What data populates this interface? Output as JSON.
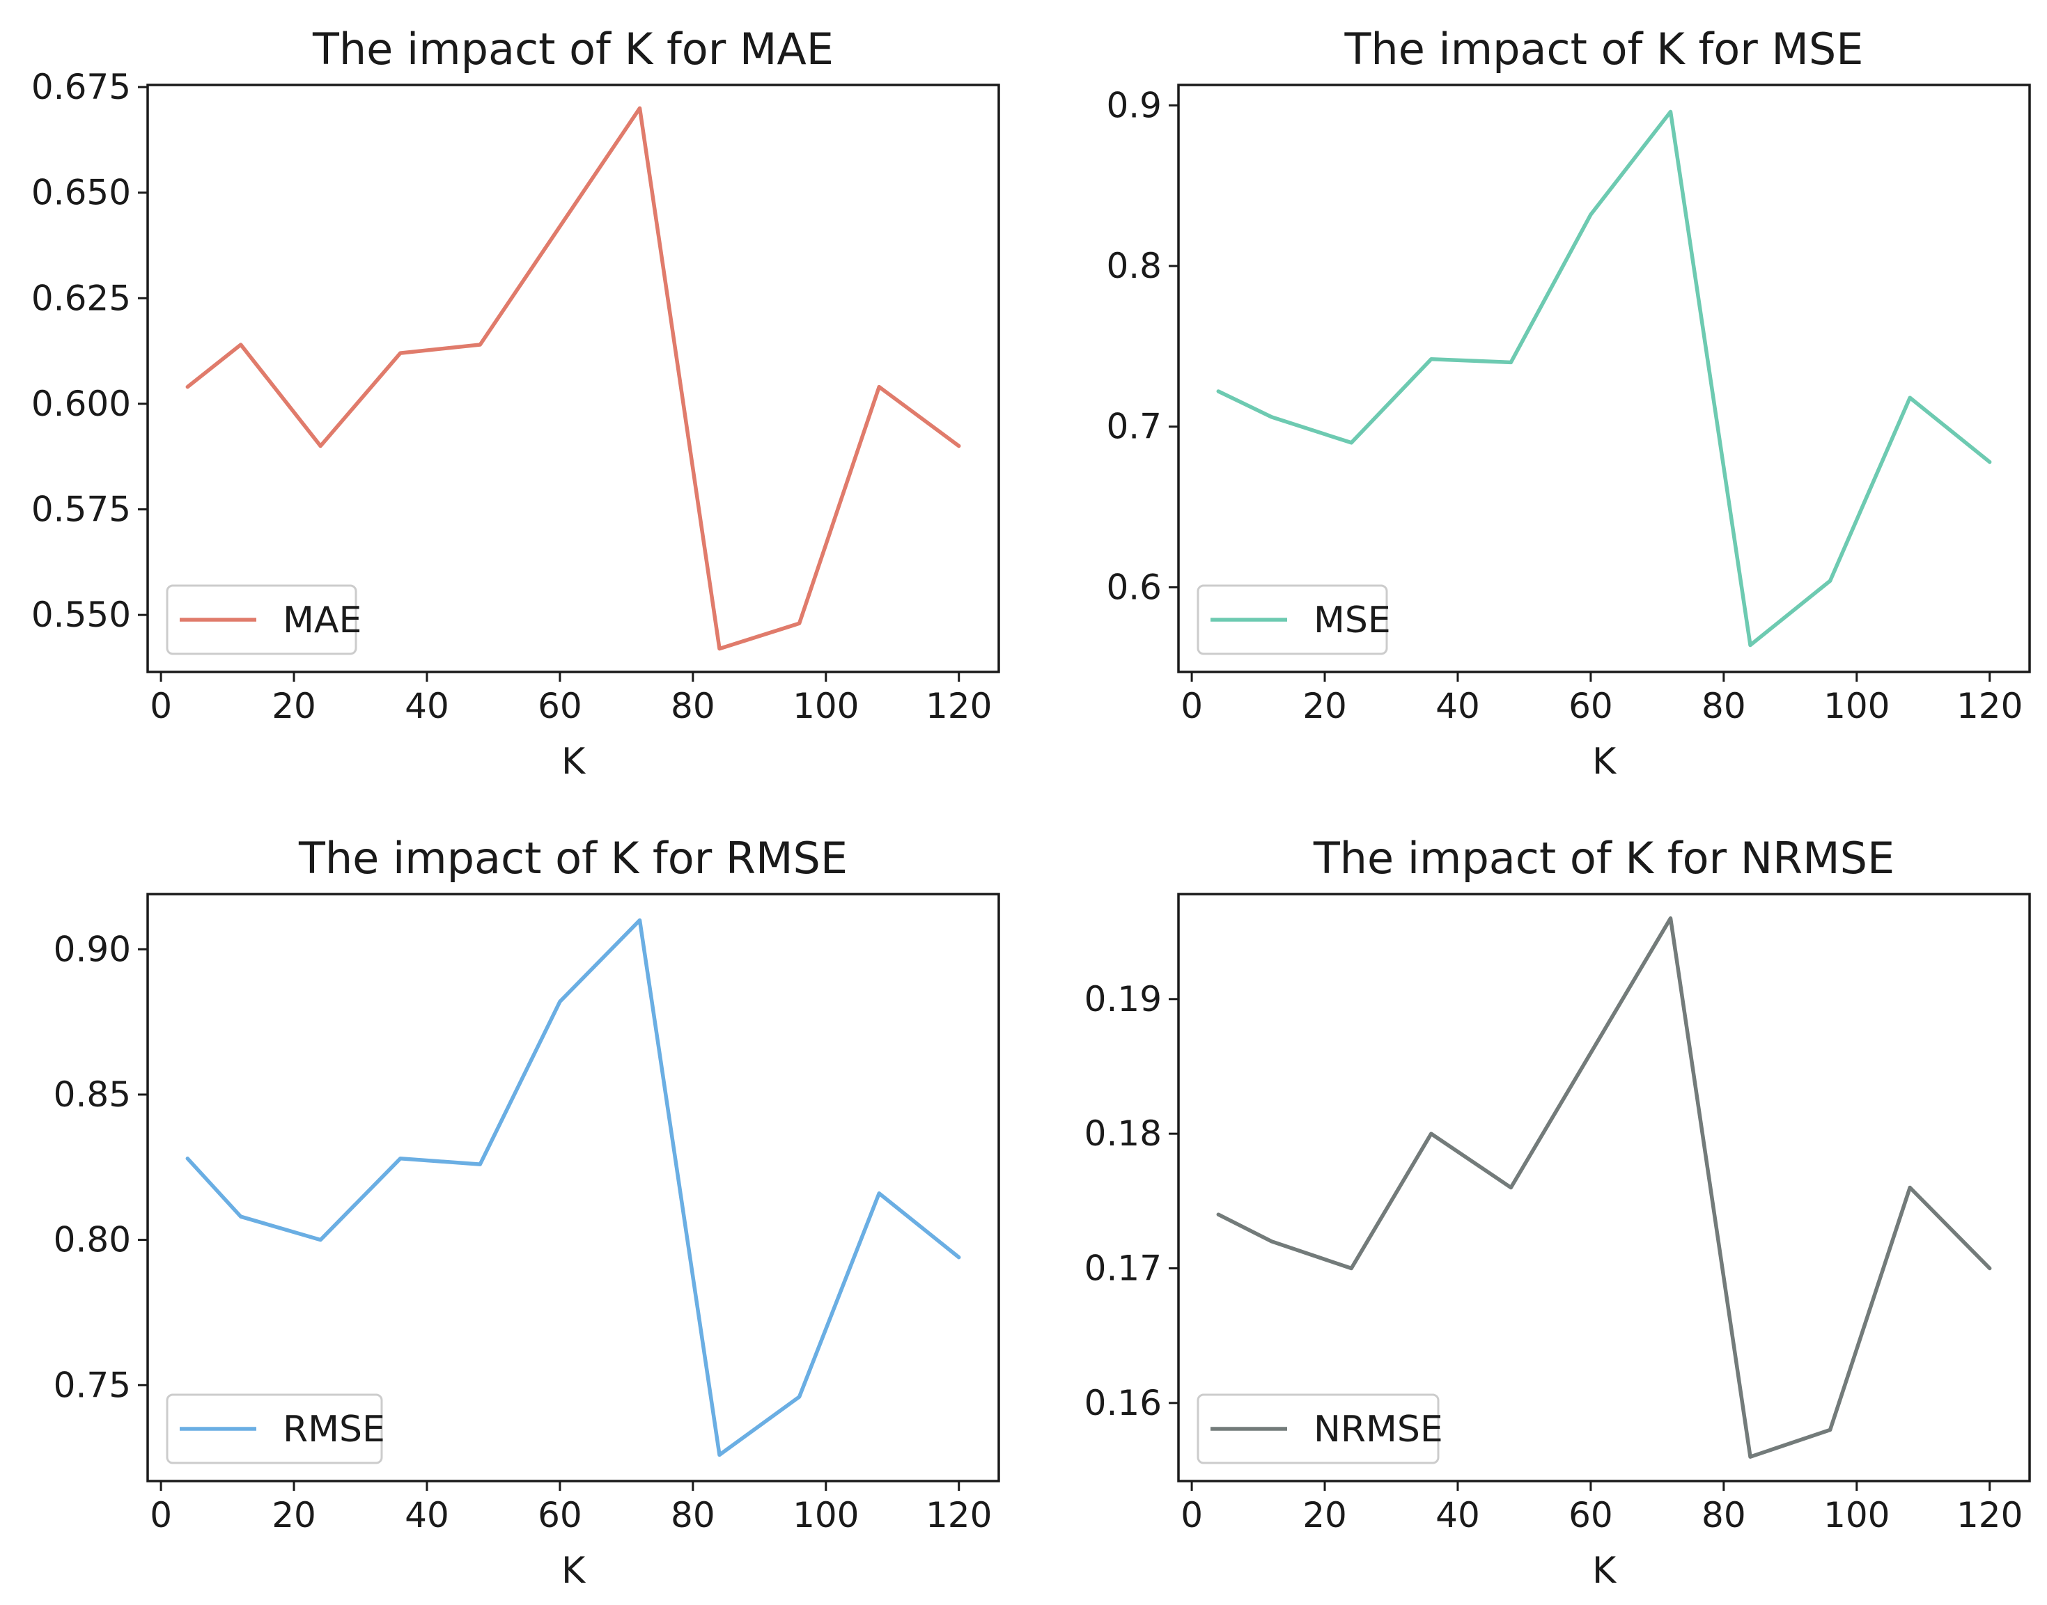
{
  "chart_data": [
    {
      "type": "line",
      "title": "The impact of K for MAE",
      "xlabel": "K",
      "ylabel": "",
      "legend_position": "lower-left",
      "color": "#e07b6b",
      "x": [
        4,
        12,
        24,
        36,
        48,
        60,
        72,
        84,
        96,
        108,
        120
      ],
      "series": [
        {
          "name": "MAE",
          "values": [
            0.604,
            0.614,
            0.59,
            0.612,
            0.614,
            0.642,
            0.67,
            0.542,
            0.548,
            0.604,
            0.59
          ]
        }
      ],
      "xlim": [
        -2,
        126
      ],
      "ylim": [
        0.5365,
        0.6755
      ],
      "xticks": [
        0,
        20,
        40,
        60,
        80,
        100,
        120
      ],
      "xtick_labels": [
        "0",
        "20",
        "40",
        "60",
        "80",
        "100",
        "120"
      ],
      "yticks": [
        0.55,
        0.575,
        0.6,
        0.625,
        0.65,
        0.675
      ],
      "ytick_labels": [
        "0.550",
        "0.575",
        "0.600",
        "0.625",
        "0.650",
        "0.675"
      ]
    },
    {
      "type": "line",
      "title": "The impact of K for MSE",
      "xlabel": "K",
      "ylabel": "",
      "legend_position": "lower-left",
      "color": "#6dcab1",
      "x": [
        4,
        12,
        24,
        36,
        48,
        60,
        72,
        84,
        96,
        108,
        120
      ],
      "series": [
        {
          "name": "MSE",
          "values": [
            0.722,
            0.706,
            0.69,
            0.742,
            0.74,
            0.832,
            0.896,
            0.564,
            0.604,
            0.718,
            0.678
          ]
        }
      ],
      "xlim": [
        -2,
        126
      ],
      "ylim": [
        0.5473,
        0.9127
      ],
      "xticks": [
        0,
        20,
        40,
        60,
        80,
        100,
        120
      ],
      "xtick_labels": [
        "0",
        "20",
        "40",
        "60",
        "80",
        "100",
        "120"
      ],
      "yticks": [
        0.6,
        0.7,
        0.8,
        0.9
      ],
      "ytick_labels": [
        "0.6",
        "0.7",
        "0.8",
        "0.9"
      ]
    },
    {
      "type": "line",
      "title": "The impact of K for RMSE",
      "xlabel": "K",
      "ylabel": "",
      "legend_position": "lower-left",
      "color": "#6aaee3",
      "x": [
        4,
        12,
        24,
        36,
        48,
        60,
        72,
        84,
        96,
        108,
        120
      ],
      "series": [
        {
          "name": "RMSE",
          "values": [
            0.828,
            0.808,
            0.8,
            0.828,
            0.826,
            0.882,
            0.91,
            0.726,
            0.746,
            0.816,
            0.794
          ]
        }
      ],
      "xlim": [
        -2,
        126
      ],
      "ylim": [
        0.717,
        0.919
      ],
      "xticks": [
        0,
        20,
        40,
        60,
        80,
        100,
        120
      ],
      "xtick_labels": [
        "0",
        "20",
        "40",
        "60",
        "80",
        "100",
        "120"
      ],
      "yticks": [
        0.75,
        0.8,
        0.85,
        0.9
      ],
      "ytick_labels": [
        "0.75",
        "0.80",
        "0.85",
        "0.90"
      ]
    },
    {
      "type": "line",
      "title": "The impact of K for NRMSE",
      "xlabel": "K",
      "ylabel": "",
      "legend_position": "lower-left",
      "color": "#737b7a",
      "x": [
        4,
        12,
        24,
        36,
        48,
        60,
        72,
        84,
        96,
        108,
        120
      ],
      "series": [
        {
          "name": "NRMSE",
          "values": [
            0.174,
            0.172,
            0.17,
            0.18,
            0.176,
            0.186,
            0.196,
            0.156,
            0.158,
            0.176,
            0.17
          ]
        }
      ],
      "xlim": [
        -2,
        126
      ],
      "ylim": [
        0.1542,
        0.1978
      ],
      "xticks": [
        0,
        20,
        40,
        60,
        80,
        100,
        120
      ],
      "xtick_labels": [
        "0",
        "20",
        "40",
        "60",
        "80",
        "100",
        "120"
      ],
      "yticks": [
        0.16,
        0.17,
        0.18,
        0.19
      ],
      "ytick_labels": [
        "0.16",
        "0.17",
        "0.18",
        "0.19"
      ]
    }
  ]
}
